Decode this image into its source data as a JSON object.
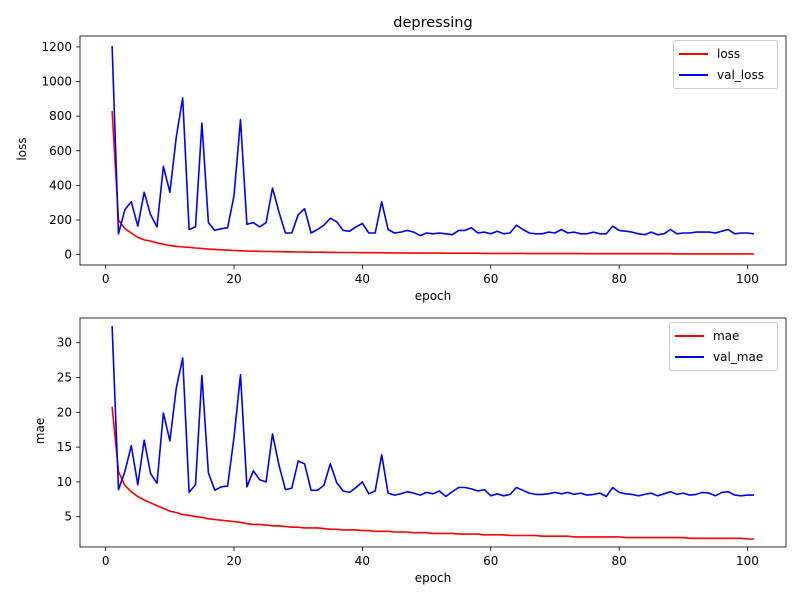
{
  "chart_data": [
    {
      "type": "line",
      "title": "depressing",
      "xlabel": "epoch",
      "ylabel": "loss",
      "xlim": [
        -4.0,
        106.0
      ],
      "ylim": [
        -60,
        1263
      ],
      "xticks": [
        0,
        20,
        40,
        60,
        80,
        100
      ],
      "yticks": [
        0,
        200,
        400,
        600,
        800,
        1000,
        1200
      ],
      "legend": "top-right",
      "grid": false,
      "series": [
        {
          "name": "loss",
          "color": "#ff0000",
          "x": [
            1,
            2,
            3,
            4,
            5,
            6,
            7,
            8,
            9,
            10,
            11,
            12,
            13,
            14,
            15,
            16,
            17,
            18,
            19,
            20,
            21,
            22,
            23,
            24,
            25,
            26,
            27,
            28,
            29,
            30,
            31,
            32,
            33,
            34,
            35,
            36,
            37,
            38,
            39,
            40,
            41,
            42,
            43,
            44,
            45,
            46,
            47,
            48,
            49,
            50,
            51,
            52,
            53,
            54,
            55,
            56,
            57,
            58,
            59,
            60,
            61,
            62,
            63,
            64,
            65,
            66,
            67,
            68,
            69,
            70,
            71,
            72,
            73,
            74,
            75,
            76,
            77,
            78,
            79,
            80,
            81,
            82,
            83,
            84,
            85,
            86,
            87,
            88,
            89,
            90,
            91,
            92,
            93,
            94,
            95,
            96,
            97,
            98,
            99,
            100,
            101
          ],
          "y": [
            830,
            200,
            150,
            125,
            100,
            85,
            78,
            68,
            60,
            52,
            48,
            44,
            42,
            38,
            36,
            32,
            30,
            28,
            26,
            24,
            22,
            21,
            20,
            19,
            18,
            18,
            17,
            16,
            16,
            15,
            15,
            14,
            14,
            14,
            13,
            13,
            12,
            12,
            12,
            11,
            11,
            11,
            11,
            10,
            10,
            10,
            10,
            9,
            9,
            9,
            9,
            9,
            8,
            8,
            8,
            8,
            8,
            8,
            7,
            7,
            7,
            7,
            7,
            7,
            7,
            6,
            6,
            6,
            6,
            6,
            6,
            6,
            6,
            6,
            5,
            5,
            5,
            5,
            5,
            5,
            5,
            5,
            5,
            5,
            5,
            5,
            5,
            5,
            4,
            4,
            4,
            4,
            4,
            4,
            4,
            4,
            4,
            4,
            4,
            4,
            4
          ]
        },
        {
          "name": "val_loss",
          "color": "#0000ff",
          "x": [
            1,
            2,
            3,
            4,
            5,
            6,
            7,
            8,
            9,
            10,
            11,
            12,
            13,
            14,
            15,
            16,
            17,
            18,
            19,
            20,
            21,
            22,
            23,
            24,
            25,
            26,
            27,
            28,
            29,
            30,
            31,
            32,
            33,
            34,
            35,
            36,
            37,
            38,
            39,
            40,
            41,
            42,
            43,
            44,
            45,
            46,
            47,
            48,
            49,
            50,
            51,
            52,
            53,
            54,
            55,
            56,
            57,
            58,
            59,
            60,
            61,
            62,
            63,
            64,
            65,
            66,
            67,
            68,
            69,
            70,
            71,
            72,
            73,
            74,
            75,
            76,
            77,
            78,
            79,
            80,
            81,
            82,
            83,
            84,
            85,
            86,
            87,
            88,
            89,
            90,
            91,
            92,
            93,
            94,
            95,
            96,
            97,
            98,
            99,
            100,
            101
          ],
          "y": [
            1205,
            120,
            260,
            305,
            165,
            360,
            230,
            160,
            510,
            360,
            680,
            905,
            145,
            160,
            760,
            185,
            140,
            150,
            155,
            340,
            780,
            175,
            185,
            160,
            185,
            385,
            245,
            125,
            125,
            230,
            265,
            125,
            145,
            170,
            210,
            190,
            140,
            135,
            160,
            180,
            125,
            125,
            305,
            145,
            125,
            130,
            140,
            130,
            110,
            125,
            120,
            125,
            120,
            115,
            140,
            140,
            155,
            125,
            130,
            120,
            135,
            120,
            125,
            170,
            145,
            125,
            120,
            120,
            130,
            125,
            145,
            125,
            130,
            120,
            120,
            130,
            120,
            120,
            165,
            140,
            135,
            130,
            120,
            115,
            130,
            115,
            120,
            145,
            120,
            125,
            125,
            130,
            130,
            130,
            125,
            135,
            145,
            120,
            125,
            125,
            120
          ]
        }
      ]
    },
    {
      "type": "line",
      "title": "",
      "xlabel": "epoch",
      "ylabel": "mae",
      "xlim": [
        -4.0,
        106.0
      ],
      "ylim": [
        0.65,
        33.55
      ],
      "xticks": [
        0,
        20,
        40,
        60,
        80,
        100
      ],
      "yticks": [
        5,
        10,
        15,
        20,
        25,
        30
      ],
      "legend": "top-right",
      "grid": false,
      "series": [
        {
          "name": "mae",
          "color": "#ff0000",
          "x": [
            1,
            2,
            3,
            4,
            5,
            6,
            7,
            8,
            9,
            10,
            11,
            12,
            13,
            14,
            15,
            16,
            17,
            18,
            19,
            20,
            21,
            22,
            23,
            24,
            25,
            26,
            27,
            28,
            29,
            30,
            31,
            32,
            33,
            34,
            35,
            36,
            37,
            38,
            39,
            40,
            41,
            42,
            43,
            44,
            45,
            46,
            47,
            48,
            49,
            50,
            51,
            52,
            53,
            54,
            55,
            56,
            57,
            58,
            59,
            60,
            61,
            62,
            63,
            64,
            65,
            66,
            67,
            68,
            69,
            70,
            71,
            72,
            73,
            74,
            75,
            76,
            77,
            78,
            79,
            80,
            81,
            82,
            83,
            84,
            85,
            86,
            87,
            88,
            89,
            90,
            91,
            92,
            93,
            94,
            95,
            96,
            97,
            98,
            99,
            100,
            101
          ],
          "y": [
            20.8,
            11.5,
            9.5,
            8.6,
            7.9,
            7.4,
            7.0,
            6.6,
            6.2,
            5.8,
            5.6,
            5.3,
            5.2,
            5.0,
            4.9,
            4.7,
            4.6,
            4.5,
            4.4,
            4.3,
            4.2,
            4.0,
            3.9,
            3.9,
            3.8,
            3.7,
            3.7,
            3.6,
            3.5,
            3.5,
            3.4,
            3.4,
            3.4,
            3.3,
            3.2,
            3.2,
            3.1,
            3.1,
            3.1,
            3.0,
            3.0,
            2.9,
            2.9,
            2.9,
            2.8,
            2.8,
            2.8,
            2.7,
            2.7,
            2.7,
            2.6,
            2.6,
            2.6,
            2.6,
            2.5,
            2.5,
            2.5,
            2.5,
            2.4,
            2.4,
            2.4,
            2.4,
            2.3,
            2.3,
            2.3,
            2.3,
            2.3,
            2.2,
            2.2,
            2.2,
            2.2,
            2.2,
            2.1,
            2.1,
            2.1,
            2.1,
            2.1,
            2.1,
            2.1,
            2.1,
            2.0,
            2.0,
            2.0,
            2.0,
            2.0,
            2.0,
            2.0,
            2.0,
            2.0,
            2.0,
            1.9,
            1.9,
            1.9,
            1.9,
            1.9,
            1.9,
            1.9,
            1.9,
            1.9,
            1.8,
            1.8
          ]
        },
        {
          "name": "val_mae",
          "color": "#0000ff",
          "x": [
            1,
            2,
            3,
            4,
            5,
            6,
            7,
            8,
            9,
            10,
            11,
            12,
            13,
            14,
            15,
            16,
            17,
            18,
            19,
            20,
            21,
            22,
            23,
            24,
            25,
            26,
            27,
            28,
            29,
            30,
            31,
            32,
            33,
            34,
            35,
            36,
            37,
            38,
            39,
            40,
            41,
            42,
            43,
            44,
            45,
            46,
            47,
            48,
            49,
            50,
            51,
            52,
            53,
            54,
            55,
            56,
            57,
            58,
            59,
            60,
            61,
            62,
            63,
            64,
            65,
            66,
            67,
            68,
            69,
            70,
            71,
            72,
            73,
            74,
            75,
            76,
            77,
            78,
            79,
            80,
            81,
            82,
            83,
            84,
            85,
            86,
            87,
            88,
            89,
            90,
            91,
            92,
            93,
            94,
            95,
            96,
            97,
            98,
            99,
            100,
            101
          ],
          "y": [
            32.4,
            8.9,
            11.5,
            15.2,
            9.6,
            16.0,
            11.2,
            9.8,
            19.9,
            15.9,
            23.5,
            27.8,
            8.5,
            9.6,
            25.3,
            11.3,
            8.8,
            9.3,
            9.4,
            16.4,
            25.4,
            9.3,
            11.6,
            10.3,
            10.0,
            16.9,
            12.4,
            8.9,
            9.1,
            13.0,
            12.6,
            8.8,
            8.8,
            9.5,
            12.6,
            9.9,
            8.7,
            8.5,
            9.2,
            10.0,
            8.3,
            8.7,
            13.9,
            8.4,
            8.1,
            8.3,
            8.6,
            8.4,
            8.1,
            8.5,
            8.3,
            8.7,
            7.9,
            8.6,
            9.2,
            9.2,
            9.0,
            8.7,
            8.9,
            8.0,
            8.3,
            8.0,
            8.2,
            9.2,
            8.8,
            8.4,
            8.2,
            8.2,
            8.3,
            8.5,
            8.3,
            8.5,
            8.2,
            8.4,
            8.1,
            8.2,
            8.4,
            7.9,
            9.2,
            8.5,
            8.3,
            8.2,
            8.0,
            8.2,
            8.4,
            8.0,
            8.3,
            8.6,
            8.2,
            8.4,
            8.1,
            8.2,
            8.5,
            8.4,
            8.0,
            8.5,
            8.6,
            8.1,
            8.0,
            8.1,
            8.1
          ]
        }
      ]
    }
  ]
}
